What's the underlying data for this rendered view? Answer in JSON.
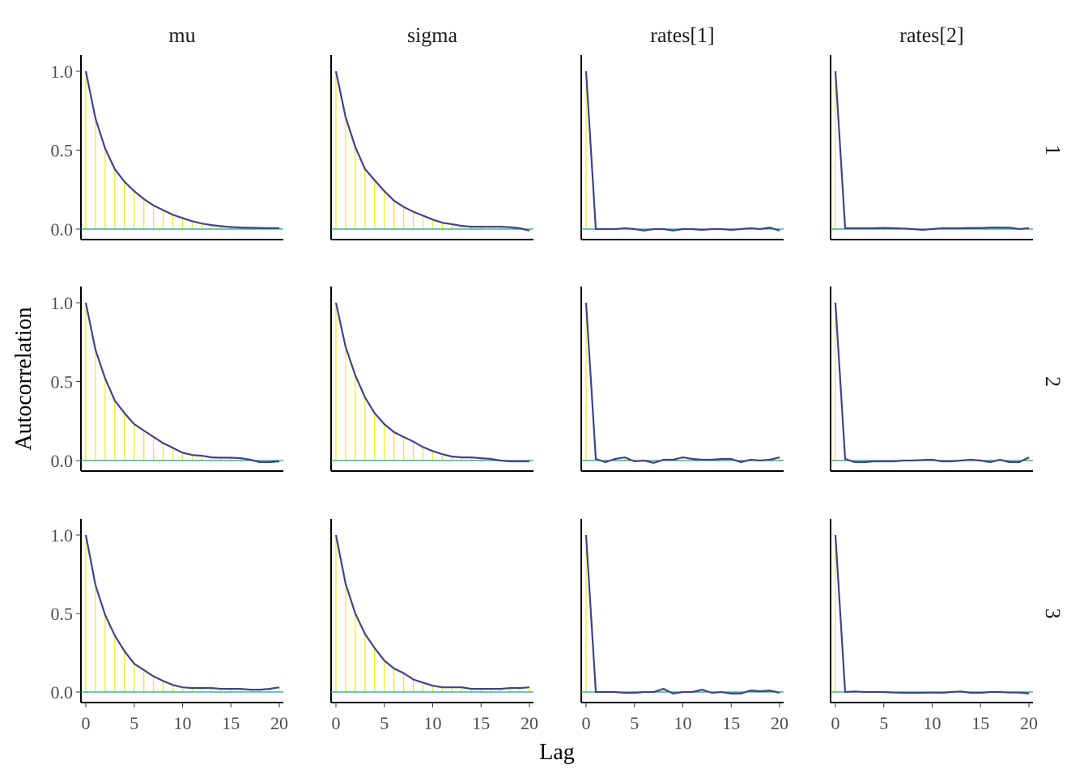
{
  "chart_data": {
    "type": "bar",
    "title": "",
    "xlabel": "Lag",
    "ylabel": "Autocorrelation",
    "xlim": [
      0,
      20
    ],
    "ylim": [
      0,
      1
    ],
    "x_ticks": [
      "0",
      "5",
      "10",
      "15",
      "20"
    ],
    "y_ticks": [
      "0.0",
      "0.5",
      "1.0"
    ],
    "columns": [
      "mu",
      "sigma",
      "rates[1]",
      "rates[2]"
    ],
    "rows": [
      "1",
      "2",
      "3"
    ],
    "lags": [
      0,
      1,
      2,
      3,
      4,
      5,
      6,
      7,
      8,
      9,
      10,
      11,
      12,
      13,
      14,
      15,
      16,
      17,
      18,
      19,
      20
    ],
    "colors": {
      "bar": "#FDE725",
      "line": "#414487",
      "hline": "#1FA187"
    },
    "series": [
      {
        "row": "1",
        "param": "mu",
        "values": [
          1,
          0.7,
          0.51,
          0.38,
          0.3,
          0.24,
          0.19,
          0.15,
          0.12,
          0.09,
          0.07,
          0.05,
          0.035,
          0.025,
          0.018,
          0.013,
          0.01,
          0.008,
          0.007,
          0.006,
          0.006
        ]
      },
      {
        "row": "1",
        "param": "sigma",
        "values": [
          1,
          0.71,
          0.52,
          0.38,
          0.31,
          0.24,
          0.18,
          0.14,
          0.11,
          0.085,
          0.06,
          0.04,
          0.03,
          0.02,
          0.015,
          0.015,
          0.015,
          0.015,
          0.012,
          0.005,
          -0.01
        ]
      },
      {
        "row": "1",
        "param": "rates[1]",
        "values": [
          1,
          0.0,
          0.0,
          0.0,
          0.005,
          0.0,
          -0.01,
          0.0,
          0.0,
          -0.01,
          0.0,
          0.0,
          -0.005,
          0.0,
          0.0,
          -0.005,
          0.0,
          0.005,
          0.0,
          0.01,
          -0.01
        ]
      },
      {
        "row": "1",
        "param": "rates[2]",
        "values": [
          1,
          0.005,
          0.005,
          0.005,
          0.005,
          0.007,
          0.005,
          0.003,
          0.0,
          -0.005,
          0.0,
          0.005,
          0.005,
          0.005,
          0.007,
          0.007,
          0.009,
          0.01,
          0.009,
          0.0,
          0.005
        ]
      },
      {
        "row": "2",
        "param": "mu",
        "values": [
          1,
          0.7,
          0.52,
          0.38,
          0.3,
          0.23,
          0.19,
          0.15,
          0.11,
          0.08,
          0.05,
          0.035,
          0.03,
          0.02,
          0.018,
          0.018,
          0.015,
          0.005,
          -0.01,
          -0.01,
          -0.005
        ]
      },
      {
        "row": "2",
        "param": "sigma",
        "values": [
          1,
          0.72,
          0.54,
          0.4,
          0.3,
          0.23,
          0.18,
          0.15,
          0.12,
          0.085,
          0.06,
          0.04,
          0.025,
          0.02,
          0.02,
          0.015,
          0.01,
          0.0,
          -0.005,
          -0.005,
          -0.005
        ]
      },
      {
        "row": "2",
        "param": "rates[1]",
        "values": [
          1,
          0.01,
          -0.01,
          0.01,
          0.02,
          -0.005,
          0.0,
          -0.015,
          0.005,
          0.005,
          0.02,
          0.01,
          0.005,
          0.005,
          0.01,
          0.01,
          -0.01,
          0.005,
          0.0,
          0.005,
          0.02
        ]
      },
      {
        "row": "2",
        "param": "rates[2]",
        "values": [
          1,
          0.01,
          -0.01,
          -0.01,
          -0.005,
          -0.005,
          -0.005,
          0.0,
          0.0,
          0.003,
          0.005,
          -0.005,
          -0.005,
          0.0,
          0.005,
          0.0,
          -0.01,
          0.005,
          -0.01,
          -0.01,
          0.02
        ]
      },
      {
        "row": "3",
        "param": "mu",
        "values": [
          1,
          0.68,
          0.49,
          0.36,
          0.26,
          0.18,
          0.14,
          0.1,
          0.07,
          0.045,
          0.03,
          0.025,
          0.025,
          0.025,
          0.02,
          0.02,
          0.02,
          0.015,
          0.015,
          0.02,
          0.03
        ]
      },
      {
        "row": "3",
        "param": "sigma",
        "values": [
          1,
          0.69,
          0.5,
          0.37,
          0.28,
          0.2,
          0.15,
          0.12,
          0.08,
          0.06,
          0.04,
          0.03,
          0.03,
          0.03,
          0.02,
          0.02,
          0.02,
          0.02,
          0.025,
          0.025,
          0.03
        ]
      },
      {
        "row": "3",
        "param": "rates[1]",
        "values": [
          1,
          0.0,
          0.0,
          0.0,
          -0.005,
          -0.005,
          0.0,
          0.0,
          0.02,
          -0.01,
          0.0,
          0.0,
          0.015,
          -0.005,
          0.0,
          -0.01,
          -0.01,
          0.01,
          0.005,
          0.01,
          -0.005
        ]
      },
      {
        "row": "3",
        "param": "rates[2]",
        "values": [
          1,
          0.0,
          0.003,
          0.0,
          0.0,
          0.0,
          -0.003,
          -0.005,
          -0.005,
          -0.005,
          -0.003,
          -0.005,
          0.0,
          0.003,
          -0.005,
          -0.005,
          0.0,
          0.0,
          -0.003,
          -0.003,
          -0.01
        ]
      }
    ]
  }
}
